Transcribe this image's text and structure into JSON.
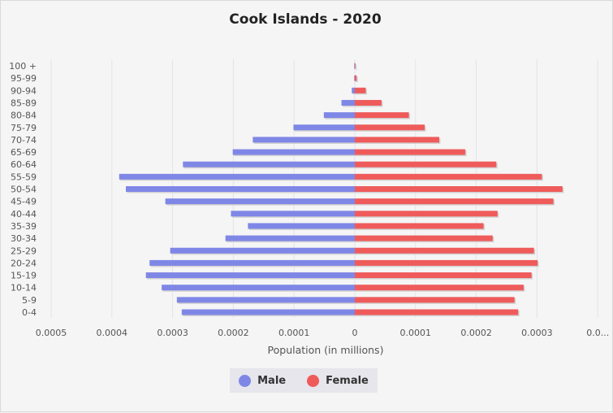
{
  "chart_data": {
    "type": "bar",
    "orientation": "horizontal",
    "title": "Cook Islands - 2020",
    "xlabel": "Population (in millions)",
    "categories": [
      "100 +",
      "95-99",
      "90-94",
      "85-89",
      "80-84",
      "75-79",
      "70-74",
      "65-69",
      "60-64",
      "55-59",
      "50-54",
      "45-49",
      "40-44",
      "35-39",
      "30-34",
      "25-29",
      "20-24",
      "15-19",
      "10-14",
      "5-9",
      "0-4"
    ],
    "xlim": [
      -0.0005,
      0.0004
    ],
    "x_tick_labels": [
      "0.0005",
      "0.0004",
      "0.0003",
      "0.0002",
      "0.0001",
      "0",
      "0.0001",
      "0.0002",
      "0.0003",
      "0.0..."
    ],
    "grid": true,
    "legend_position": "bottom",
    "series": [
      {
        "name": "Male",
        "color": "#7f87e6",
        "values": [
          1e-06,
          1e-06,
          5e-06,
          2.2e-05,
          5.1e-05,
          0.000101,
          0.000168,
          0.000201,
          0.000283,
          0.000388,
          0.000377,
          0.000312,
          0.000204,
          0.000176,
          0.000213,
          0.000304,
          0.000338,
          0.000344,
          0.000318,
          0.000293,
          0.000285
        ]
      },
      {
        "name": "Female",
        "color": "#ef5b5b",
        "values": [
          1e-06,
          3e-06,
          1.8e-05,
          4.4e-05,
          8.9e-05,
          0.000115,
          0.000139,
          0.000182,
          0.000233,
          0.000308,
          0.000342,
          0.000327,
          0.000235,
          0.000212,
          0.000227,
          0.000295,
          0.000301,
          0.000291,
          0.000278,
          0.000263,
          0.000269
        ]
      }
    ]
  }
}
